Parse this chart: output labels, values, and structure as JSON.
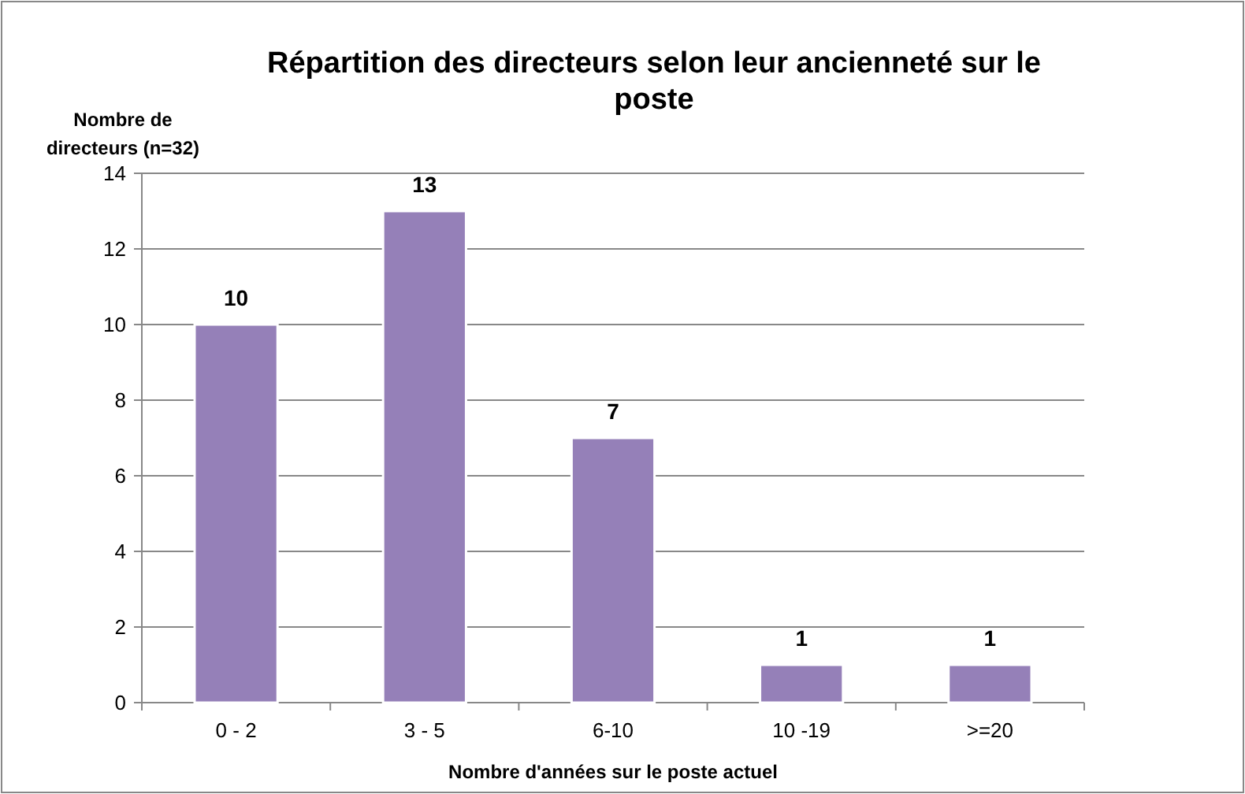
{
  "chart_data": {
    "type": "bar",
    "title": "Répartition des directeurs selon leur ancienneté sur le poste",
    "ylabel": "Nombre de directeurs (n=32)",
    "xlabel": "Nombre d'années sur le poste actuel",
    "categories": [
      "0 - 2",
      "3 - 5",
      "6-10",
      "10 -19",
      ">=20"
    ],
    "values": [
      10,
      13,
      7,
      1,
      1
    ],
    "color": "#9580b8",
    "ylim": [
      0,
      14
    ],
    "yticks": [
      0,
      2,
      4,
      6,
      8,
      10,
      12,
      14
    ],
    "grid": "y",
    "data_labels": true
  }
}
